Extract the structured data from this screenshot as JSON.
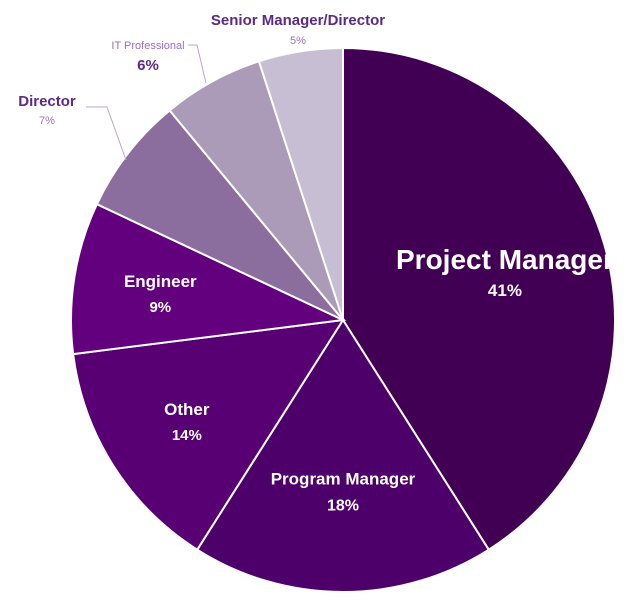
{
  "chart_data": {
    "type": "pie",
    "title": "",
    "start_angle_deg": 0,
    "direction": "clockwise",
    "slices": [
      {
        "label": "Project Manager",
        "value": 41,
        "value_label": "41%",
        "color": "#420055",
        "label_pos": "inside-large"
      },
      {
        "label": "Program Manager",
        "value": 18,
        "value_label": "18%",
        "color": "#4e006a",
        "label_pos": "inside"
      },
      {
        "label": "Other",
        "value": 14,
        "value_label": "14%",
        "color": "#580073",
        "label_pos": "inside"
      },
      {
        "label": "Engineer",
        "value": 9,
        "value_label": "9%",
        "color": "#62007e",
        "label_pos": "inside"
      },
      {
        "label": "Director",
        "value": 7,
        "value_label": "7%",
        "color": "#8b6d9e",
        "label_pos": "outside"
      },
      {
        "label": "IT Professional",
        "value": 6,
        "value_label": "6%",
        "color": "#ab9ab8",
        "label_pos": "outside"
      },
      {
        "label": "Senior Manager/Director",
        "value": 5,
        "value_label": "5%",
        "color": "#c7bed3",
        "label_pos": "outside"
      }
    ]
  }
}
